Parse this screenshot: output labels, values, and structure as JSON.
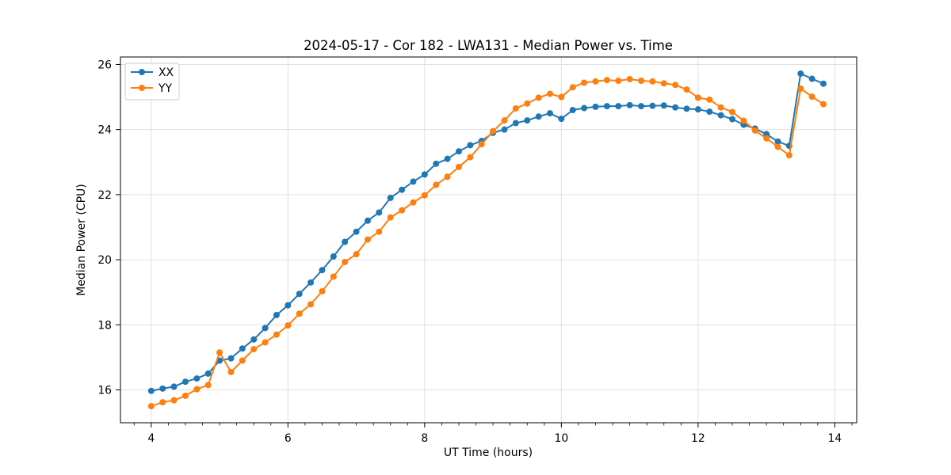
{
  "chart_data": {
    "type": "line",
    "title": "2024-05-17 - Cor 182 - LWA131 - Median Power vs. Time",
    "xlabel": "UT Time (hours)",
    "ylabel": "Median Power (CPU)",
    "xlim": [
      3.55,
      14.32
    ],
    "ylim": [
      14.99,
      26.23
    ],
    "xticks": [
      4,
      6,
      8,
      10,
      12,
      14
    ],
    "yticks": [
      16,
      18,
      20,
      22,
      24,
      26
    ],
    "x_minor_step": 0.25,
    "grid": true,
    "grid_color": "#e0e0e0",
    "spine_color": "#000000",
    "legend": {
      "position": "upper-left",
      "entries": [
        {
          "label": "XX",
          "color": "#1f77b4"
        },
        {
          "label": "YY",
          "color": "#ff7f0e"
        }
      ]
    },
    "x": [
      4.0,
      4.167,
      4.333,
      4.5,
      4.667,
      4.833,
      5.0,
      5.167,
      5.333,
      5.5,
      5.667,
      5.833,
      6.0,
      6.167,
      6.333,
      6.5,
      6.667,
      6.833,
      7.0,
      7.167,
      7.333,
      7.5,
      7.667,
      7.833,
      8.0,
      8.167,
      8.333,
      8.5,
      8.667,
      8.833,
      9.0,
      9.167,
      9.333,
      9.5,
      9.667,
      9.833,
      10.0,
      10.167,
      10.333,
      10.5,
      10.667,
      10.833,
      11.0,
      11.167,
      11.333,
      11.5,
      11.667,
      11.833,
      12.0,
      12.167,
      12.333,
      12.5,
      12.667,
      12.833,
      13.0,
      13.167,
      13.333,
      13.5,
      13.667,
      13.833
    ],
    "series": [
      {
        "name": "XX",
        "color": "#1f77b4",
        "values": [
          15.97,
          16.04,
          16.1,
          16.25,
          16.35,
          16.5,
          16.9,
          16.97,
          17.27,
          17.55,
          17.9,
          18.3,
          18.6,
          18.95,
          19.3,
          19.68,
          20.1,
          20.55,
          20.86,
          21.2,
          21.45,
          21.9,
          22.15,
          22.4,
          22.62,
          22.95,
          23.1,
          23.33,
          23.52,
          23.65,
          23.9,
          24.0,
          24.2,
          24.28,
          24.4,
          24.5,
          24.33,
          24.6,
          24.66,
          24.7,
          24.72,
          24.72,
          24.75,
          24.72,
          24.73,
          24.74,
          24.68,
          24.64,
          24.62,
          24.55,
          24.44,
          24.32,
          24.15,
          24.03,
          23.86,
          23.63,
          23.5,
          25.72,
          25.56,
          25.41
        ]
      },
      {
        "name": "YY",
        "color": "#ff7f0e",
        "values": [
          15.5,
          15.62,
          15.68,
          15.82,
          16.02,
          16.15,
          17.15,
          16.55,
          16.9,
          17.25,
          17.46,
          17.7,
          17.98,
          18.34,
          18.63,
          19.03,
          19.48,
          19.93,
          20.17,
          20.62,
          20.86,
          21.3,
          21.52,
          21.76,
          21.98,
          22.3,
          22.55,
          22.85,
          23.15,
          23.55,
          23.95,
          24.28,
          24.65,
          24.8,
          24.98,
          25.1,
          25.0,
          25.3,
          25.44,
          25.48,
          25.52,
          25.5,
          25.55,
          25.5,
          25.48,
          25.42,
          25.37,
          25.23,
          24.98,
          24.92,
          24.68,
          24.54,
          24.27,
          23.97,
          23.73,
          23.47,
          23.21,
          25.26,
          25.01,
          24.78
        ]
      }
    ]
  }
}
